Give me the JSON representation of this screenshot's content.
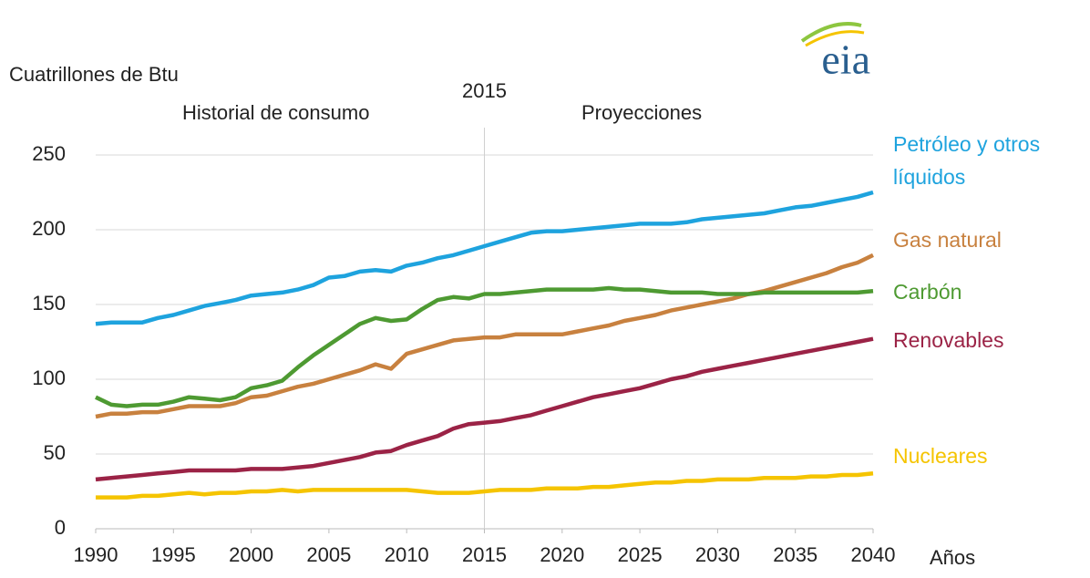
{
  "chart_data": {
    "type": "line",
    "logo": "eia",
    "y_label": "Cuatrillones de Btu",
    "x_label": "Años",
    "annotations": [
      "Historial de consumo",
      "Proyecciones"
    ],
    "divider_x": 2015,
    "x": [
      1990,
      1991,
      1992,
      1993,
      1994,
      1995,
      1996,
      1997,
      1998,
      1999,
      2000,
      2001,
      2002,
      2003,
      2004,
      2005,
      2006,
      2007,
      2008,
      2009,
      2010,
      2011,
      2012,
      2013,
      2014,
      2015,
      2016,
      2017,
      2018,
      2019,
      2020,
      2021,
      2022,
      2023,
      2024,
      2025,
      2026,
      2027,
      2028,
      2029,
      2030,
      2031,
      2032,
      2033,
      2034,
      2035,
      2036,
      2037,
      2038,
      2039,
      2040
    ],
    "xlim": [
      1990,
      2040
    ],
    "xticks": [
      1990,
      1995,
      2000,
      2005,
      2010,
      2015,
      2020,
      2025,
      2030,
      2035,
      2040
    ],
    "ylim": [
      0,
      250
    ],
    "yticks": [
      0,
      50,
      100,
      150,
      200,
      250
    ],
    "grid": true,
    "series": [
      {
        "name": "Petróleo y otros líquidos",
        "color": "#1ea3de",
        "values": [
          137,
          138,
          138,
          138,
          141,
          143,
          146,
          149,
          151,
          153,
          156,
          157,
          158,
          160,
          163,
          168,
          169,
          172,
          173,
          172,
          176,
          178,
          181,
          183,
          186,
          189,
          192,
          195,
          198,
          199,
          199,
          200,
          201,
          202,
          203,
          204,
          204,
          204,
          205,
          207,
          208,
          209,
          210,
          211,
          213,
          215,
          216,
          218,
          220,
          222,
          225
        ]
      },
      {
        "name": "Gas natural",
        "color": "#c8813f",
        "values": [
          75,
          77,
          77,
          78,
          78,
          80,
          82,
          82,
          82,
          84,
          88,
          89,
          92,
          95,
          97,
          100,
          103,
          106,
          110,
          107,
          117,
          120,
          123,
          126,
          127,
          128,
          128,
          130,
          130,
          130,
          130,
          132,
          134,
          136,
          139,
          141,
          143,
          146,
          148,
          150,
          152,
          154,
          157,
          159,
          162,
          165,
          168,
          171,
          175,
          178,
          183
        ]
      },
      {
        "name": "Carbón",
        "color": "#4e9a32",
        "values": [
          88,
          83,
          82,
          83,
          83,
          85,
          88,
          87,
          86,
          88,
          94,
          96,
          99,
          108,
          116,
          123,
          130,
          137,
          141,
          139,
          140,
          147,
          153,
          155,
          154,
          157,
          157,
          158,
          159,
          160,
          160,
          160,
          160,
          161,
          160,
          160,
          159,
          158,
          158,
          158,
          157,
          157,
          157,
          158,
          158,
          158,
          158,
          158,
          158,
          158,
          159
        ]
      },
      {
        "name": "Renovables",
        "color": "#9b2346",
        "values": [
          33,
          34,
          35,
          36,
          37,
          38,
          39,
          39,
          39,
          39,
          40,
          40,
          40,
          41,
          42,
          44,
          46,
          48,
          51,
          52,
          56,
          59,
          62,
          67,
          70,
          71,
          72,
          74,
          76,
          79,
          82,
          85,
          88,
          90,
          92,
          94,
          97,
          100,
          102,
          105,
          107,
          109,
          111,
          113,
          115,
          117,
          119,
          121,
          123,
          125,
          127
        ]
      },
      {
        "name": "Nucleares",
        "color": "#f5c400",
        "values": [
          21,
          21,
          21,
          22,
          22,
          23,
          24,
          23,
          24,
          24,
          25,
          25,
          26,
          25,
          26,
          26,
          26,
          26,
          26,
          26,
          26,
          25,
          24,
          24,
          24,
          25,
          26,
          26,
          26,
          27,
          27,
          27,
          28,
          28,
          29,
          30,
          31,
          31,
          32,
          32,
          33,
          33,
          33,
          34,
          34,
          34,
          35,
          35,
          36,
          36,
          37
        ]
      }
    ]
  }
}
